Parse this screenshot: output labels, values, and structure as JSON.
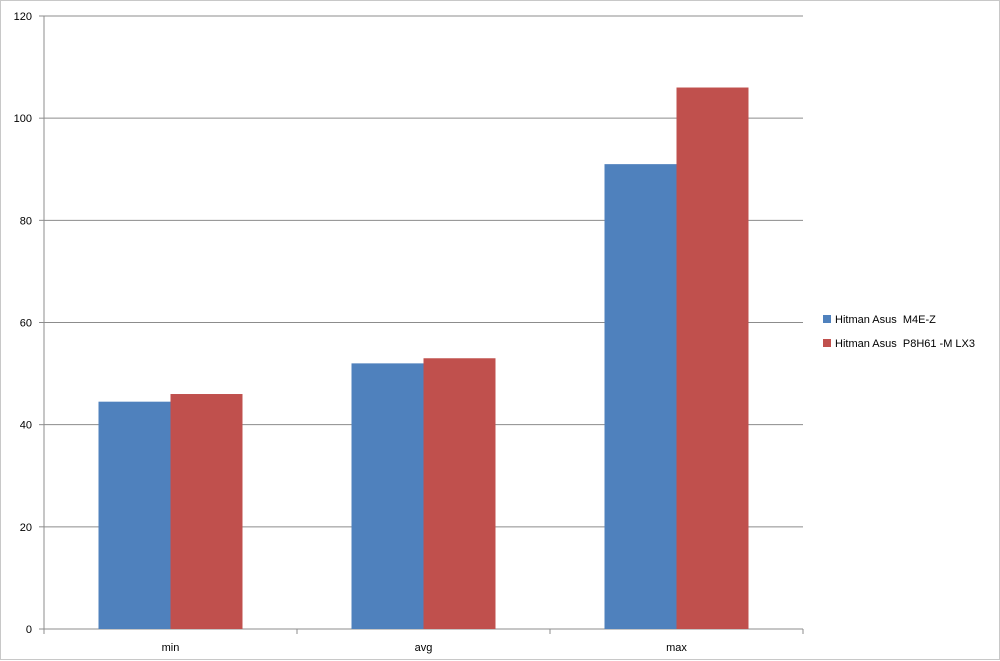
{
  "chart_data": {
    "type": "bar",
    "title": "",
    "xlabel": "",
    "ylabel": "",
    "categories": [
      "min",
      "avg",
      "max"
    ],
    "series": [
      {
        "name": "Hitman Asus  M4E-Z",
        "values": [
          44.5,
          52,
          91
        ],
        "color": "#4f81bd"
      },
      {
        "name": "Hitman Asus  P8H61 -M LX3",
        "values": [
          46,
          53,
          106
        ],
        "color": "#c0504d"
      }
    ],
    "ylim": [
      0,
      120
    ],
    "yticks": [
      0,
      20,
      40,
      60,
      80,
      100,
      120
    ],
    "grid": true,
    "legend_position": "right"
  }
}
